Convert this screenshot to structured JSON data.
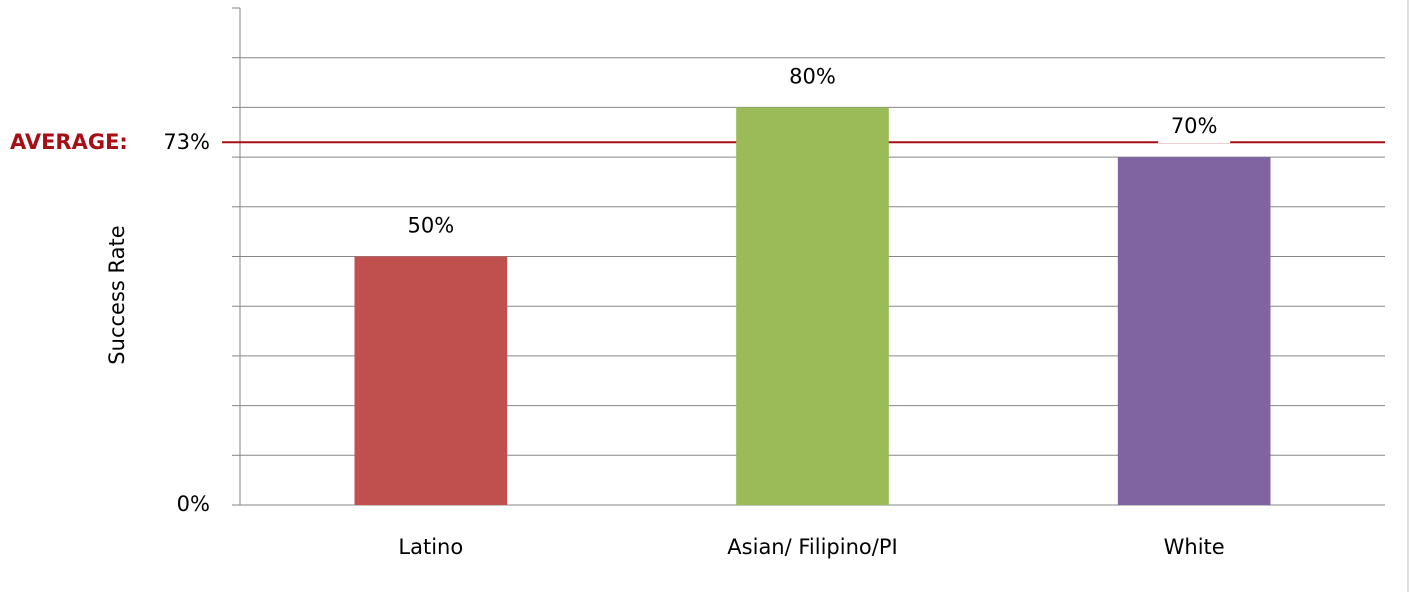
{
  "chart_data": {
    "type": "bar",
    "y_label": "Success Rate",
    "categories": [
      "Latino",
      "Asian/ Filipino/PI",
      "White"
    ],
    "values": [
      50,
      80,
      70
    ],
    "value_labels": [
      "50%",
      "80%",
      "70%"
    ],
    "colors": [
      "#c0504d",
      "#9bbb59",
      "#8064a2"
    ],
    "ylim": [
      0,
      100
    ],
    "yticks": [
      {
        "value": 0,
        "label": "0%"
      },
      {
        "value": 10,
        "label": null
      },
      {
        "value": 20,
        "label": null
      },
      {
        "value": 30,
        "label": null
      },
      {
        "value": 40,
        "label": null
      },
      {
        "value": 50,
        "label": null
      },
      {
        "value": 60,
        "label": null
      },
      {
        "value": 70,
        "label": null
      },
      {
        "value": 80,
        "label": null
      },
      {
        "value": 90,
        "label": null
      },
      {
        "value": 100,
        "label": null
      }
    ],
    "grid": true,
    "average": {
      "label": "AVERAGE:",
      "value": 73,
      "value_label": "73%",
      "color": "#a50f15"
    }
  }
}
